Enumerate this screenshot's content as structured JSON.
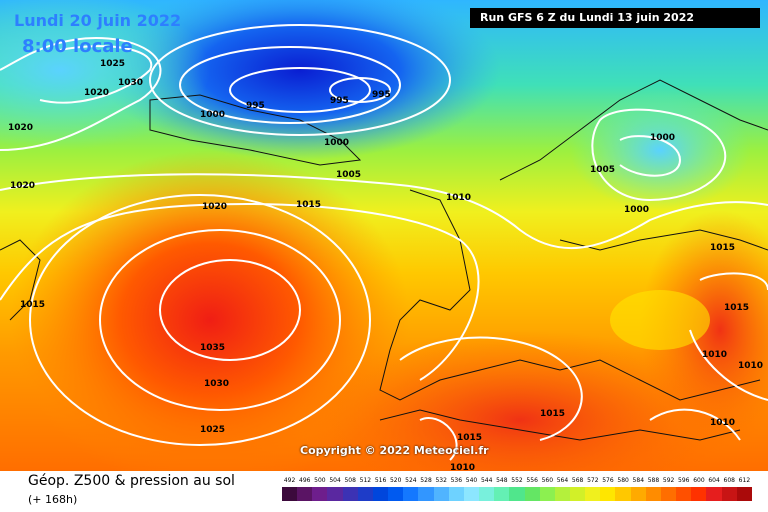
{
  "header": {
    "date_label": "Lundi 20 juin 2022",
    "time_label": "8:00 locale",
    "run_label": "Run GFS 6 Z du Lundi 13 juin 2022"
  },
  "copyright": "Copyright © 2022 Meteociel.fr",
  "legend": {
    "title": "Géop. Z500 & pression au sol",
    "subtitle": "(+ 168h)",
    "scale_values": [
      "492",
      "496",
      "500",
      "504",
      "508",
      "512",
      "516",
      "520",
      "524",
      "528",
      "532",
      "536",
      "540",
      "544",
      "548",
      "552",
      "556",
      "560",
      "564",
      "568",
      "572",
      "576",
      "580",
      "584",
      "588",
      "592",
      "596",
      "600",
      "604",
      "608",
      "612"
    ],
    "scale_colors": [
      "#3c0a3c",
      "#5a1464",
      "#6e1e8c",
      "#5a28a0",
      "#3c32b4",
      "#1e3cc8",
      "#0046dc",
      "#005af0",
      "#1478ff",
      "#3296ff",
      "#50b4ff",
      "#6ed2ff",
      "#8ce6ff",
      "#78f0dc",
      "#64f0b4",
      "#50e68c",
      "#64e664",
      "#8cf050",
      "#b4f03c",
      "#d2f028",
      "#f0f01e",
      "#ffe600",
      "#ffc800",
      "#ffaa00",
      "#ff8c00",
      "#ff6e00",
      "#ff5000",
      "#ff3200",
      "#e61e1e",
      "#c81414",
      "#aa0a0a"
    ]
  },
  "isobar_labels": [
    {
      "text": "1025",
      "kind": "isobar"
    },
    {
      "text": "1020",
      "kind": "isobar"
    },
    {
      "text": "1030",
      "kind": "isobar"
    },
    {
      "text": "1020",
      "kind": "isobar"
    },
    {
      "text": "1020",
      "kind": "isobar"
    },
    {
      "text": "1000",
      "kind": "isobar"
    },
    {
      "text": "995",
      "kind": "isobar"
    },
    {
      "text": "995",
      "kind": "isobar"
    },
    {
      "text": "995",
      "kind": "isobar"
    },
    {
      "text": "1000",
      "kind": "isobar"
    },
    {
      "text": "1005",
      "kind": "isobar"
    },
    {
      "text": "1000",
      "kind": "isobar"
    },
    {
      "text": "1005",
      "kind": "isobar"
    },
    {
      "text": "1000",
      "kind": "isobar"
    },
    {
      "text": "1020",
      "kind": "isobar"
    },
    {
      "text": "1015",
      "kind": "isobar"
    },
    {
      "text": "1010",
      "kind": "isobar"
    },
    {
      "text": "1015",
      "kind": "isobar"
    },
    {
      "text": "1035",
      "kind": "isobar"
    },
    {
      "text": "1030",
      "kind": "isobar"
    },
    {
      "text": "1025",
      "kind": "isobar"
    },
    {
      "text": "1015",
      "kind": "isobar"
    },
    {
      "text": "1015",
      "kind": "isobar"
    },
    {
      "text": "1010",
      "kind": "isobar"
    },
    {
      "text": "1015",
      "kind": "isobar"
    },
    {
      "text": "1010",
      "kind": "isobar"
    },
    {
      "text": "1010",
      "kind": "isobar"
    },
    {
      "text": "1010",
      "kind": "isobar"
    },
    {
      "text": "1015",
      "kind": "isobar"
    }
  ]
}
